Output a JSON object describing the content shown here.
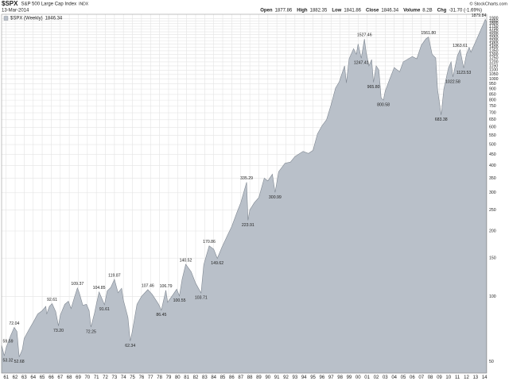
{
  "chart_data": {
    "type": "area",
    "title": "$SPX",
    "subtitle": "S&P 500 Large Cap Index",
    "exchange": "INDX",
    "date": "13-Mar-2014",
    "credit": "© StockCharts.com",
    "quote": [
      {
        "label": "Open",
        "value": "1877.86"
      },
      {
        "label": "High",
        "value": "1882.35"
      },
      {
        "label": "Low",
        "value": "1841.86"
      },
      {
        "label": "Close",
        "value": "1846.34"
      },
      {
        "label": "Volume",
        "value": "8.2B"
      },
      {
        "label": "Chg",
        "value": "-31.70 (-1.69%)",
        "color": "#cc0000"
      }
    ],
    "log_scale": true,
    "grid": true,
    "xlim": [
      1960.5,
      2014.25
    ],
    "ylim": [
      44.4,
      1986
    ],
    "xticks": [
      {
        "value": 1961,
        "label": "61"
      },
      {
        "value": 1962,
        "label": "62"
      },
      {
        "value": 1963,
        "label": "63"
      },
      {
        "value": 1964,
        "label": "64"
      },
      {
        "value": 1965,
        "label": "65"
      },
      {
        "value": 1966,
        "label": "66"
      },
      {
        "value": 1967,
        "label": "67"
      },
      {
        "value": 1968,
        "label": "68"
      },
      {
        "value": 1969,
        "label": "69"
      },
      {
        "value": 1970,
        "label": "70"
      },
      {
        "value": 1971,
        "label": "71"
      },
      {
        "value": 1972,
        "label": "72"
      },
      {
        "value": 1973,
        "label": "73"
      },
      {
        "value": 1974,
        "label": "74"
      },
      {
        "value": 1975,
        "label": "75"
      },
      {
        "value": 1976,
        "label": "76"
      },
      {
        "value": 1977,
        "label": "77"
      },
      {
        "value": 1978,
        "label": "78"
      },
      {
        "value": 1979,
        "label": "79"
      },
      {
        "value": 1980,
        "label": "80"
      },
      {
        "value": 1981,
        "label": "81"
      },
      {
        "value": 1982,
        "label": "82"
      },
      {
        "value": 1983,
        "label": "83"
      },
      {
        "value": 1984,
        "label": "84"
      },
      {
        "value": 1985,
        "label": "85"
      },
      {
        "value": 1986,
        "label": "86"
      },
      {
        "value": 1987,
        "label": "87"
      },
      {
        "value": 1988,
        "label": "88"
      },
      {
        "value": 1989,
        "label": "89"
      },
      {
        "value": 1990,
        "label": "90"
      },
      {
        "value": 1991,
        "label": "91"
      },
      {
        "value": 1992,
        "label": "92"
      },
      {
        "value": 1993,
        "label": "93"
      },
      {
        "value": 1994,
        "label": "94"
      },
      {
        "value": 1995,
        "label": "95"
      },
      {
        "value": 1996,
        "label": "96"
      },
      {
        "value": 1997,
        "label": "97"
      },
      {
        "value": 1998,
        "label": "98"
      },
      {
        "value": 1999,
        "label": "99"
      },
      {
        "value": 2000,
        "label": "00"
      },
      {
        "value": 2001,
        "label": "01"
      },
      {
        "value": 2002,
        "label": "02"
      },
      {
        "value": 2003,
        "label": "03"
      },
      {
        "value": 2004,
        "label": "04"
      },
      {
        "value": 2005,
        "label": "05"
      },
      {
        "value": 2006,
        "label": "06"
      },
      {
        "value": 2007,
        "label": "07"
      },
      {
        "value": 2008,
        "label": "08"
      },
      {
        "value": 2009,
        "label": "09"
      },
      {
        "value": 2010,
        "label": "10"
      },
      {
        "value": 2011,
        "label": "11"
      },
      {
        "value": 2012,
        "label": "12"
      },
      {
        "value": 2013,
        "label": "13"
      },
      {
        "value": 2014,
        "label": "14"
      }
    ],
    "yticks": [
      50,
      100,
      150,
      200,
      250,
      300,
      350,
      400,
      450,
      500,
      550,
      600,
      650,
      700,
      750,
      800,
      850,
      900,
      950,
      1000,
      1050,
      1100,
      1150,
      1200,
      1250,
      1300,
      1350,
      1400,
      1450,
      1500,
      1550,
      1600,
      1650,
      1700,
      1750,
      1800,
      1850,
      1900
    ],
    "x": [
      1960.5,
      1960.8,
      1961.0,
      1961.5,
      1961.9,
      1962.2,
      1962.45,
      1962.8,
      1963.0,
      1963.5,
      1964.0,
      1964.5,
      1965.0,
      1965.4,
      1965.5,
      1965.8,
      1966.1,
      1966.5,
      1966.8,
      1967.0,
      1967.5,
      1967.9,
      1968.2,
      1968.6,
      1968.9,
      1969.1,
      1969.5,
      1969.9,
      1970.2,
      1970.4,
      1970.8,
      1971.0,
      1971.3,
      1971.6,
      1971.9,
      1972.2,
      1972.6,
      1973.0,
      1973.4,
      1973.8,
      1974.0,
      1974.5,
      1974.75,
      1974.95,
      1975.5,
      1976.0,
      1976.7,
      1977.2,
      1977.9,
      1978.2,
      1978.7,
      1978.9,
      1979.5,
      1979.9,
      1980.2,
      1980.5,
      1980.9,
      1981.5,
      1982.0,
      1982.6,
      1982.9,
      1983.5,
      1984.0,
      1984.4,
      1984.9,
      1985.5,
      1986.0,
      1986.6,
      1987.0,
      1987.65,
      1987.8,
      1988.0,
      1988.5,
      1989.0,
      1989.6,
      1990.0,
      1990.5,
      1990.8,
      1991.2,
      1991.9,
      1992.5,
      1993.0,
      1993.9,
      1994.5,
      1995.0,
      1995.5,
      1996.0,
      1996.5,
      1997.0,
      1997.5,
      1997.9,
      1998.5,
      1998.7,
      1999.0,
      1999.5,
      1999.8,
      2000.0,
      2000.35,
      2000.7,
      2000.9,
      2001.2,
      2001.5,
      2001.7,
      2002.0,
      2002.3,
      2002.55,
      2002.8,
      2003.0,
      2003.5,
      2004.0,
      2004.6,
      2005.0,
      2006.0,
      2006.5,
      2007.0,
      2007.5,
      2007.8,
      2008.2,
      2008.6,
      2008.8,
      2009.2,
      2009.5,
      2010.0,
      2010.3,
      2010.5,
      2011.0,
      2011.3,
      2011.7,
      2012.0,
      2012.3,
      2012.5,
      2013.0,
      2013.5,
      2014.0,
      2014.1,
      2014.2
    ],
    "series": [
      {
        "name": "$SPX (Weekly)",
        "color": "#b9c0c9",
        "line_color": "#7f8791",
        "values": [
          59.59,
          53.32,
          58,
          66,
          72.04,
          69,
          52.68,
          57,
          64,
          70,
          76,
          83,
          86,
          90,
          83,
          90,
          92.61,
          85,
          73.2,
          82,
          92,
          95,
          88,
          100,
          109.37,
          104,
          91,
          92,
          86,
          72.25,
          84,
          92,
          104.85,
          98,
          91.61,
          106,
          110,
          119.87,
          104,
          109,
          96,
          80,
          62.34,
          68,
          92,
          100,
          107.46,
          102,
          92,
          86.45,
          106.79,
          94,
          102,
          108,
          100.55,
          120,
          140.52,
          130,
          115,
          103.71,
          140,
          170.86,
          165,
          149.62,
          168,
          190,
          210,
          245,
          270,
          335.29,
          223.91,
          250,
          270,
          285,
          350,
          340,
          365,
          300.99,
          375,
          410,
          415,
          440,
          465,
          455,
          470,
          560,
          610,
          650,
          760,
          910,
          970,
          1150,
          960,
          1240,
          1380,
          1300,
          1450,
          1247.41,
          1527.46,
          1320,
          1150,
          1230,
          965.8,
          1150,
          1100,
          820,
          800.58,
          880,
          1000,
          1130,
          1080,
          1200,
          1270,
          1240,
          1430,
          1530,
          1561.8,
          1300,
          1250,
          900,
          683.38,
          900,
          1120,
          1200,
          1022.58,
          1280,
          1363.61,
          1123.53,
          1300,
          1400,
          1330,
          1480,
          1650,
          1840,
          1879.84,
          1846.34
        ]
      }
    ],
    "annotations": [
      {
        "x": 1960.5,
        "value": 59.59
      },
      {
        "x": 1960.8,
        "value": 53.32
      },
      {
        "x": 1961.9,
        "value": 72.04
      },
      {
        "x": 1962.45,
        "value": 52.68
      },
      {
        "x": 1966.1,
        "value": 92.61
      },
      {
        "x": 1966.8,
        "value": 73.2,
        "label": "73.20"
      },
      {
        "x": 1968.9,
        "value": 109.37
      },
      {
        "x": 1970.4,
        "value": 72.25
      },
      {
        "x": 1971.3,
        "value": 104.85
      },
      {
        "x": 1971.9,
        "value": 91.61
      },
      {
        "x": 1973.0,
        "value": 119.87
      },
      {
        "x": 1974.75,
        "value": 62.34
      },
      {
        "x": 1976.7,
        "value": 107.46
      },
      {
        "x": 1978.2,
        "value": 86.45
      },
      {
        "x": 1978.7,
        "value": 106.79
      },
      {
        "x": 1980.2,
        "value": 100.55
      },
      {
        "x": 1980.9,
        "value": 140.52
      },
      {
        "x": 1982.6,
        "value": 103.71
      },
      {
        "x": 1983.5,
        "value": 170.86
      },
      {
        "x": 1984.4,
        "value": 149.62
      },
      {
        "x": 1987.65,
        "value": 335.29
      },
      {
        "x": 1987.8,
        "value": 223.91
      },
      {
        "x": 1990.8,
        "value": 300.99
      },
      {
        "x": 2000.35,
        "value": 1247.41
      },
      {
        "x": 2000.7,
        "value": 1527.46
      },
      {
        "x": 2001.7,
        "value": 965.8,
        "label": "965.80"
      },
      {
        "x": 2002.8,
        "value": 800.58
      },
      {
        "x": 2007.8,
        "value": 1561.8,
        "label": "1561.80"
      },
      {
        "x": 2009.2,
        "value": 683.38
      },
      {
        "x": 2010.5,
        "value": 1022.58
      },
      {
        "x": 2011.3,
        "value": 1363.61
      },
      {
        "x": 2011.7,
        "value": 1123.53
      },
      {
        "x": 2014.1,
        "value": 1879.84
      }
    ]
  }
}
